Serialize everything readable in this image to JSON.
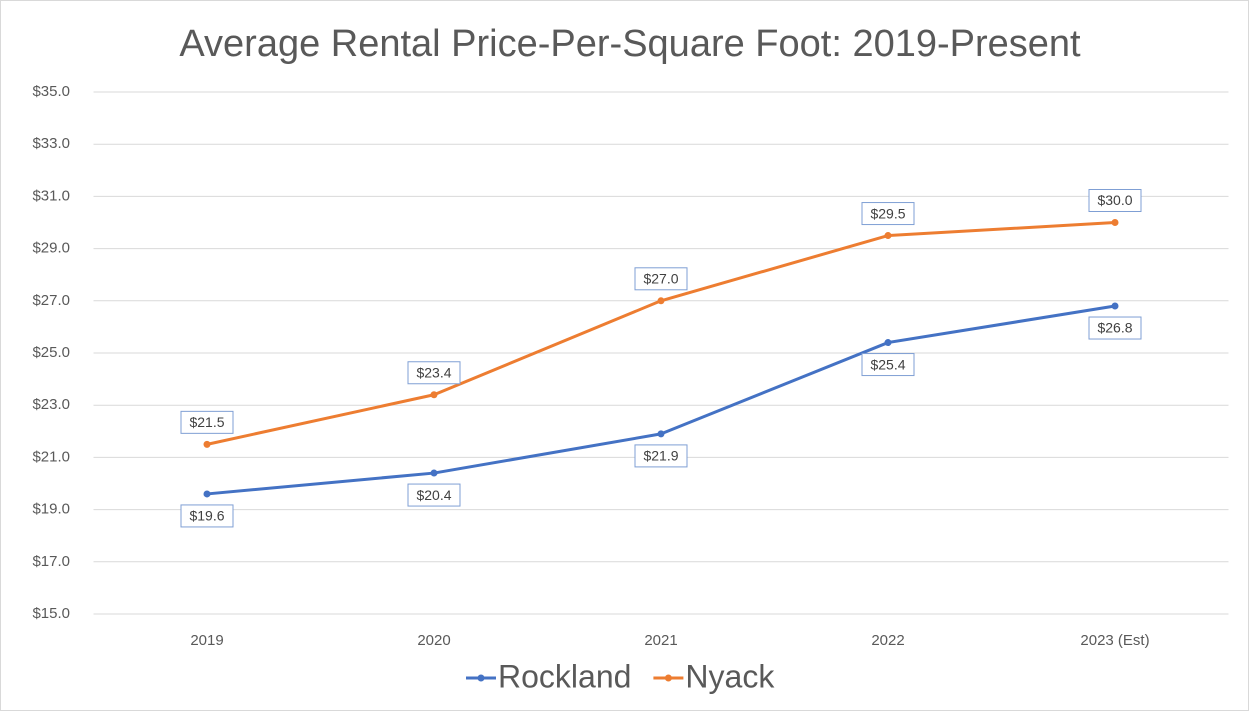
{
  "chart_data": {
    "type": "line",
    "title": "Average Rental Price-Per-Square Foot: 2019-Present",
    "categories": [
      "2019",
      "2020",
      "2021",
      "2022",
      "2023 (Est)"
    ],
    "series": [
      {
        "name": "Rockland",
        "color": "#4472c4",
        "values": [
          19.6,
          20.4,
          21.9,
          25.4,
          26.8
        ],
        "value_labels": [
          "$19.6",
          "$20.4",
          "$21.9",
          "$25.4",
          "$26.8"
        ]
      },
      {
        "name": "Nyack",
        "color": "#ed7d31",
        "values": [
          21.5,
          23.4,
          27.0,
          29.5,
          30.0
        ],
        "value_labels": [
          "$21.5",
          "$23.4",
          "$27.0",
          "$29.5",
          "$30.0"
        ]
      }
    ],
    "ylim": [
      15,
      35
    ],
    "yticks": [
      {
        "value": 15,
        "label": "$15.0"
      },
      {
        "value": 17,
        "label": "$17.0"
      },
      {
        "value": 19,
        "label": "$19.0"
      },
      {
        "value": 21,
        "label": "$21.0"
      },
      {
        "value": 23,
        "label": "$23.0"
      },
      {
        "value": 25,
        "label": "$25.0"
      },
      {
        "value": 27,
        "label": "$27.0"
      },
      {
        "value": 29,
        "label": "$29.0"
      },
      {
        "value": 31,
        "label": "$31.0"
      },
      {
        "value": 33,
        "label": "$33.0"
      },
      {
        "value": 35,
        "label": "$35.0"
      }
    ],
    "grid": true,
    "legend": "bottom"
  }
}
